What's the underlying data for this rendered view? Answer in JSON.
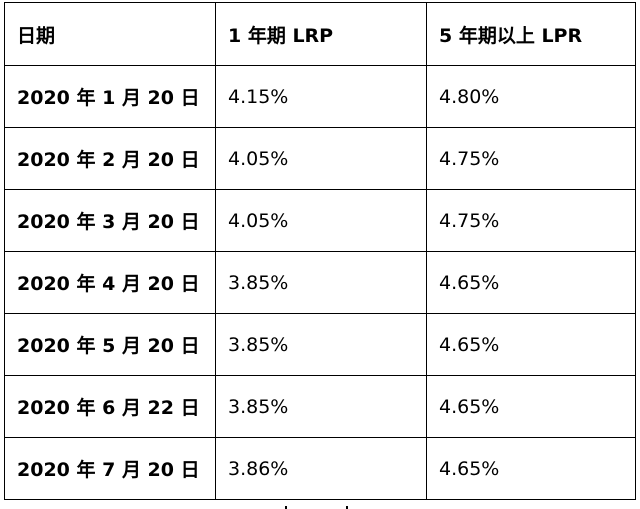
{
  "table": {
    "headers": [
      "日期",
      "1 年期 LRP",
      "5 年期以上 LPR"
    ],
    "rows": [
      {
        "date": "2020 年 1 月 20 日",
        "one_year": "4.15%",
        "five_year": "4.80%"
      },
      {
        "date": "2020 年 2 月 20 日",
        "one_year": "4.05%",
        "five_year": "4.75%"
      },
      {
        "date": "2020 年 3 月 20 日",
        "one_year": "4.05%",
        "five_year": "4.75%"
      },
      {
        "date": "2020 年 4 月 20 日",
        "one_year": "3.85%",
        "five_year": "4.65%"
      },
      {
        "date": "2020 年 5 月 20 日",
        "one_year": "3.85%",
        "five_year": "4.65%"
      },
      {
        "date": "2020 年 6 月 22 日",
        "one_year": "3.85%",
        "five_year": "4.65%"
      },
      {
        "date": "2020 年 7 月 20 日",
        "one_year": "3.86%",
        "five_year": "4.65%"
      }
    ]
  }
}
